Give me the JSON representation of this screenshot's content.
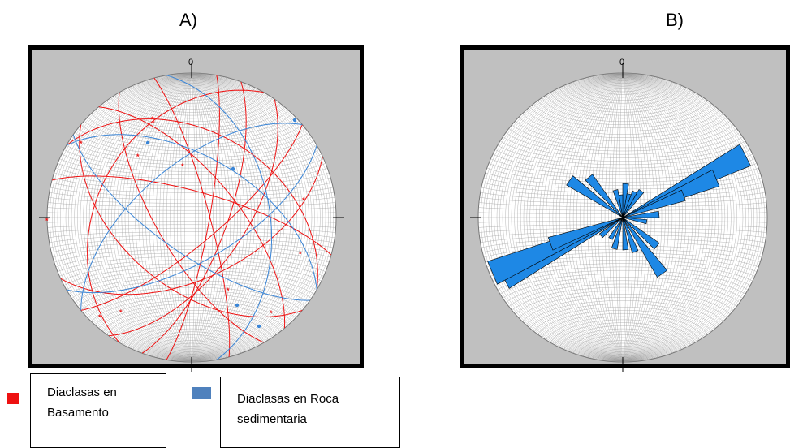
{
  "panels": [
    {
      "label": "A)",
      "north": "0"
    },
    {
      "label": "B)",
      "north": "0"
    }
  ],
  "legend": [
    {
      "label_line1": "Diaclasas en",
      "label_line2": "Basamento",
      "color": "#ee1111"
    },
    {
      "label_line1": "Diaclasas en Roca",
      "label_line2": "sedimentaria",
      "color": "#4f81bd"
    }
  ],
  "colors": {
    "background": "#c0c0c0",
    "net": "#9a9a9a",
    "basement": "#ee1111",
    "sedimentary": "#3a85d6",
    "rose": "#1e88e5"
  }
}
